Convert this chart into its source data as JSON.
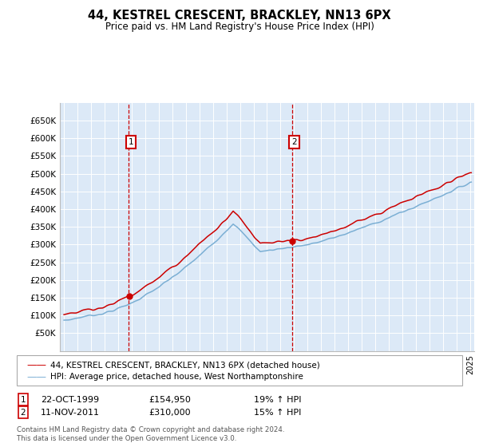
{
  "title": "44, KESTREL CRESCENT, BRACKLEY, NN13 6PX",
  "subtitle": "Price paid vs. HM Land Registry's House Price Index (HPI)",
  "bg_color": "#dce9f7",
  "red_label": "44, KESTREL CRESCENT, BRACKLEY, NN13 6PX (detached house)",
  "blue_label": "HPI: Average price, detached house, West Northamptonshire",
  "transaction1_date": "22-OCT-1999",
  "transaction1_price": "£154,950",
  "transaction1_hpi": "19% ↑ HPI",
  "transaction2_date": "11-NOV-2011",
  "transaction2_price": "£310,000",
  "transaction2_hpi": "15% ↑ HPI",
  "footer": "Contains HM Land Registry data © Crown copyright and database right 2024.\nThis data is licensed under the Open Government Licence v3.0.",
  "ylim_min": 0,
  "ylim_max": 700000,
  "yticks": [
    50000,
    100000,
    150000,
    200000,
    250000,
    300000,
    350000,
    400000,
    450000,
    500000,
    550000,
    600000,
    650000
  ],
  "ytick_labels": [
    "£50K",
    "£100K",
    "£150K",
    "£200K",
    "£250K",
    "£300K",
    "£350K",
    "£400K",
    "£450K",
    "£500K",
    "£550K",
    "£600K",
    "£650K"
  ],
  "transaction1_x": 1999.8,
  "transaction2_x": 2011.85,
  "red_color": "#cc0000",
  "blue_color": "#7bafd4",
  "vline_color": "#cc0000",
  "xmin": 1994.7,
  "xmax": 2025.3
}
